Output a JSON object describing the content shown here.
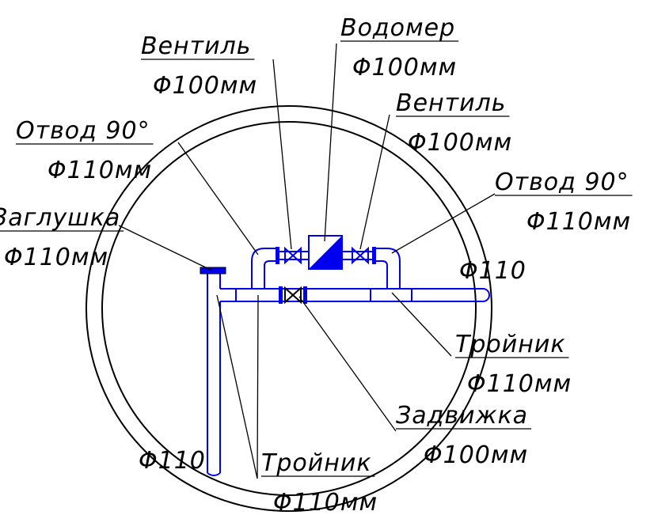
{
  "labels": [
    {
      "name": "Вентиль",
      "size": "Φ100мм"
    },
    {
      "name": "Водомер",
      "size": "Φ100мм"
    },
    {
      "name": "Вентиль",
      "size": "Φ100мм"
    },
    {
      "name": "Отвод 90°",
      "size": "Φ110мм"
    },
    {
      "name": "Отвод 90°",
      "size": "Φ110мм"
    },
    {
      "name": "Заглушка",
      "size": "Φ110мм"
    },
    {
      "name": "Тройник",
      "size": "Φ110мм"
    },
    {
      "name": "Задвижка",
      "size": "Φ100мм"
    },
    {
      "name": "Тройник",
      "size": "Φ110мм"
    }
  ],
  "pipe_labels": [
    "Φ110",
    "Φ110"
  ]
}
